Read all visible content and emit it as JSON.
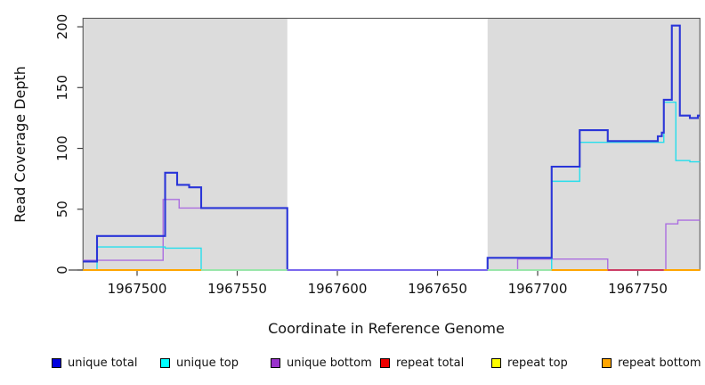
{
  "legend": {
    "items": [
      {
        "label": "unique total",
        "color": "#0000DD"
      },
      {
        "label": "unique top",
        "color": "#00FFFF"
      },
      {
        "label": "unique bottom",
        "color": "#9932CC"
      },
      {
        "label": "repeat total",
        "color": "#EE0000"
      },
      {
        "label": "repeat top",
        "color": "#FFFF00"
      },
      {
        "label": "repeat bottom",
        "color": "#FFA500"
      }
    ]
  },
  "chart_data": {
    "type": "line",
    "title": "",
    "xlabel": "Coordinate in Reference Genome",
    "ylabel": "Read Coverage Depth",
    "xlim": [
      1967473,
      1967781
    ],
    "ylim": [
      0,
      207
    ],
    "x_ticks": [
      1967500,
      1967550,
      1967600,
      1967650,
      1967700,
      1967750
    ],
    "y_ticks": [
      0,
      50,
      100,
      150,
      200
    ],
    "grid": false,
    "legend_position": "bottom",
    "interpolation": "step-after",
    "shade_color": "#DCDCDC",
    "shaded_regions": [
      [
        1967473,
        1967575
      ],
      [
        1967675,
        1967781
      ]
    ],
    "series": [
      {
        "name": "unique total",
        "line_color": "#2A35D8",
        "line_width": 2.1,
        "points": [
          [
            1967473,
            7
          ],
          [
            1967480,
            28
          ],
          [
            1967514,
            80
          ],
          [
            1967520,
            70
          ],
          [
            1967526,
            68
          ],
          [
            1967532,
            51
          ],
          [
            1967575,
            0
          ],
          [
            1967675,
            10
          ],
          [
            1967707,
            85
          ],
          [
            1967721,
            115
          ],
          [
            1967735,
            106
          ],
          [
            1967760,
            110
          ],
          [
            1967762,
            113
          ],
          [
            1967763,
            140
          ],
          [
            1967767,
            201
          ],
          [
            1967771,
            127
          ],
          [
            1967776,
            125
          ],
          [
            1967780,
            127
          ]
        ]
      },
      {
        "name": "unique top",
        "line_color": "#25DEEC",
        "line_width": 1.4,
        "points": [
          [
            1967473,
            0
          ],
          [
            1967480,
            19
          ],
          [
            1967514,
            18
          ],
          [
            1967532,
            0
          ],
          [
            1967675,
            0
          ],
          [
            1967707,
            73
          ],
          [
            1967721,
            105
          ],
          [
            1967763,
            138
          ],
          [
            1967769,
            90
          ],
          [
            1967776,
            89
          ]
        ]
      },
      {
        "name": "unique bottom",
        "line_color": "#AB6EE0",
        "line_width": 1.4,
        "points": [
          [
            1967473,
            8
          ],
          [
            1967513,
            58
          ],
          [
            1967521,
            51
          ],
          [
            1967575,
            0
          ],
          [
            1967690,
            9
          ],
          [
            1967735,
            0
          ],
          [
            1967764,
            38
          ],
          [
            1967770,
            41
          ]
        ]
      },
      {
        "name": "repeat total",
        "line_color": "#DD2222",
        "line_width": 1.4,
        "points": [
          [
            1967473,
            0
          ]
        ]
      },
      {
        "name": "repeat top",
        "line_color": "#EEEE00",
        "line_width": 1.4,
        "points": [
          [
            1967473,
            0
          ]
        ]
      },
      {
        "name": "repeat bottom",
        "line_color": "#FFA500",
        "line_width": 1.8,
        "points": [
          [
            1967473,
            0
          ]
        ]
      }
    ],
    "baseline_overlap_segments": [
      {
        "from": 1967473,
        "to": 1967532,
        "color": "#FFA500"
      },
      {
        "from": 1967532,
        "to": 1967575,
        "color": "#99E6AA"
      },
      {
        "from": 1967575,
        "to": 1967675,
        "color": "#7B68EE"
      },
      {
        "from": 1967675,
        "to": 1967707,
        "color": "#99E6AA"
      },
      {
        "from": 1967707,
        "to": 1967735,
        "color": "#FFA500"
      },
      {
        "from": 1967735,
        "to": 1967763,
        "color": "#CC3E66"
      },
      {
        "from": 1967763,
        "to": 1967781,
        "color": "#FFA500"
      }
    ]
  }
}
